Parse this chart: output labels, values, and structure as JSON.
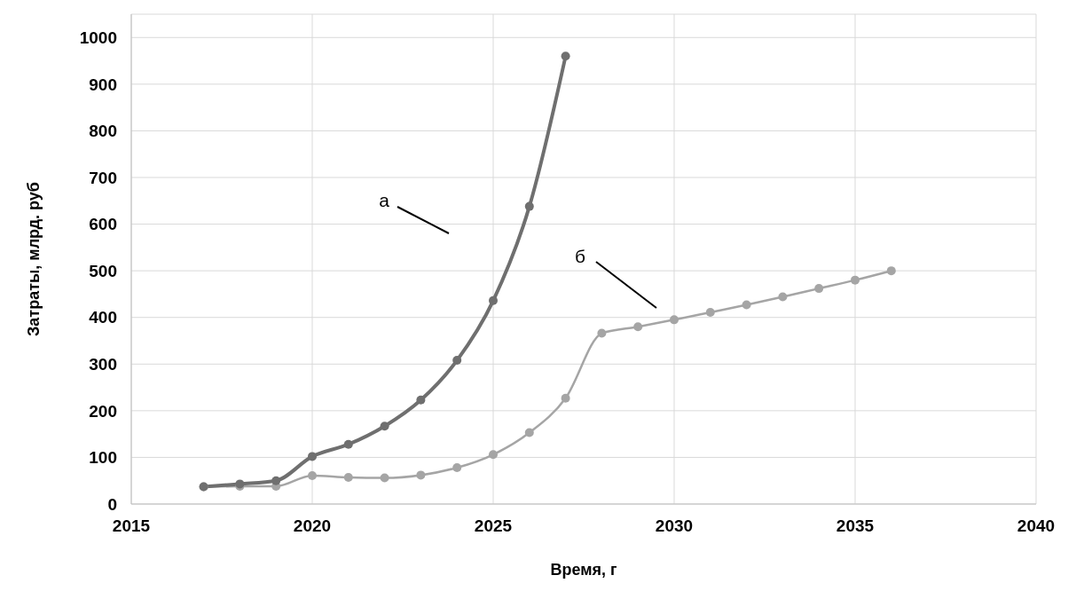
{
  "chart_data": {
    "type": "line",
    "xlabel": "Время, г",
    "ylabel": "Затраты, млрд. руб",
    "x": [
      2017,
      2018,
      2019,
      2020,
      2021,
      2022,
      2023,
      2024,
      2025,
      2026,
      2027,
      2028,
      2029,
      2030,
      2031,
      2032,
      2033,
      2034,
      2035,
      2036
    ],
    "series": [
      {
        "color": "#6f6f6f",
        "values": [
          37,
          43,
          50,
          102,
          128,
          167,
          223,
          308,
          436,
          638,
          960,
          null,
          null,
          null,
          null,
          null,
          null,
          null,
          null,
          null
        ]
      },
      {
        "color": "#a5a5a5",
        "values": [
          37,
          38,
          38,
          61,
          57,
          56,
          62,
          78,
          106,
          153,
          227,
          366,
          380,
          395,
          411,
          427,
          444,
          462,
          480,
          500
        ]
      }
    ],
    "annotations": [
      "а",
      "б"
    ],
    "xlim": [
      2015,
      2040
    ],
    "xticks": [
      2015,
      2020,
      2025,
      2030,
      2035,
      2040
    ],
    "ylim": [
      0,
      1050
    ],
    "yticks": [
      0,
      100,
      200,
      300,
      400,
      500,
      600,
      700,
      800,
      900,
      1000
    ],
    "grid": true,
    "marker": "circle",
    "line_style": "solid",
    "legend": false
  }
}
